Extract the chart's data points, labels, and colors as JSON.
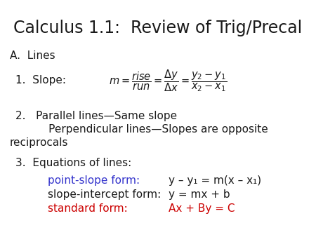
{
  "title": "Calculus 1.1:  Review of Trig/Precal",
  "background_color": "#ffffff",
  "text_color_black": "#1a1a1a",
  "text_color_blue": "#3333cc",
  "text_color_red": "#cc0000",
  "section_A": "A.  Lines",
  "item1_label": "1.  Slope:",
  "item2_line1": "2.   Parallel lines—Same slope",
  "item2_line2": "       Perpendicular lines—Slopes are opposite",
  "item2_line3": "reciprocals",
  "item3_label": "3.  Equations of lines:",
  "form1_label": "point-slope form:",
  "form1_eq": "y – y₁ = m(x – x₁)",
  "form2_label": "slope-intercept form:",
  "form2_eq": "y = mx + b",
  "form3_label": "standard form:",
  "form3_eq": "Ax + By = C"
}
